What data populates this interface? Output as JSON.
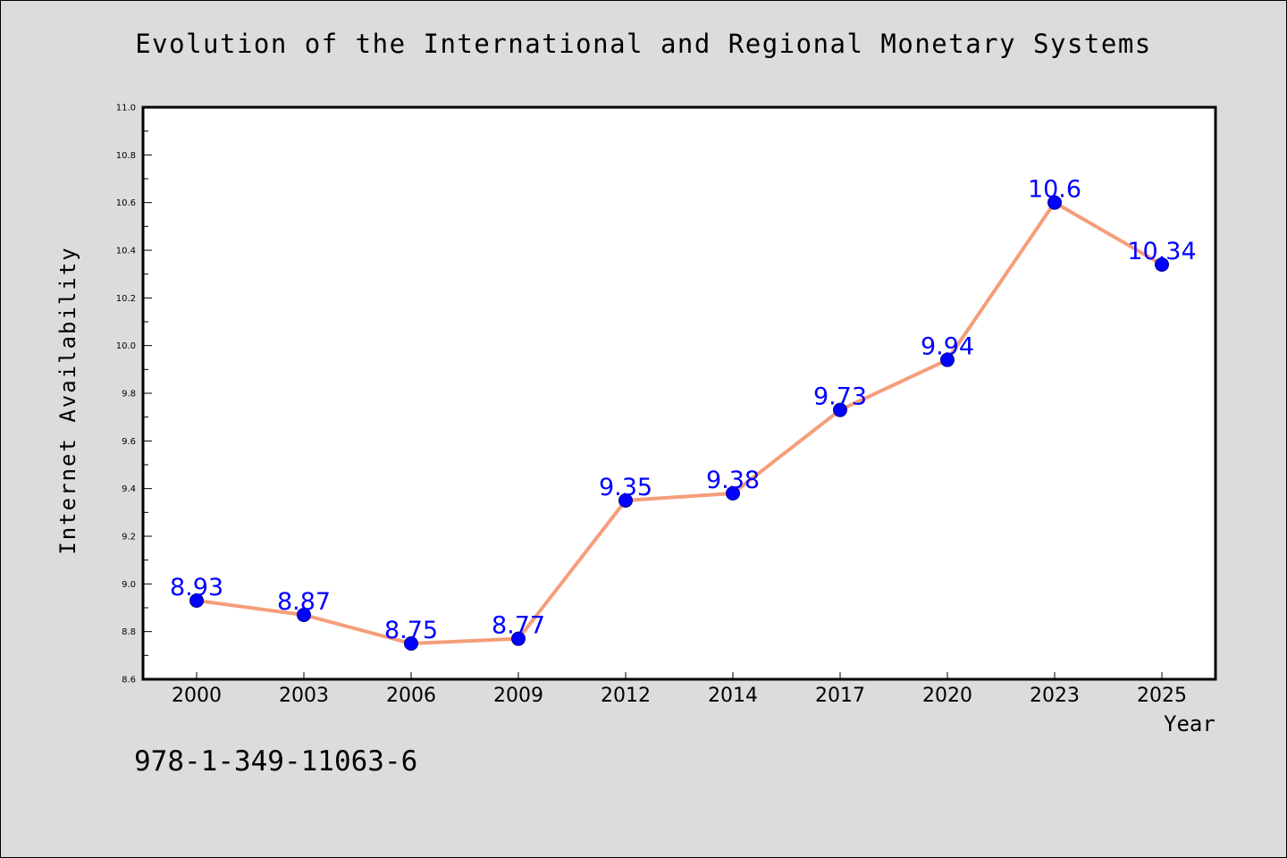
{
  "chart_data": {
    "type": "line",
    "title": "Evolution of the International and Regional Monetary Systems",
    "xlabel": "Year",
    "ylabel": "Internet Availability",
    "categories": [
      "2000",
      "2003",
      "2006",
      "2009",
      "2012",
      "2014",
      "2017",
      "2020",
      "2023",
      "2025"
    ],
    "series": [
      {
        "values": [
          8.93,
          8.87,
          8.75,
          8.77,
          9.35,
          9.38,
          9.73,
          9.94,
          10.6,
          10.34
        ],
        "labels": [
          "8.93",
          "8.87",
          "8.75",
          "8.77",
          "9.35",
          "9.38",
          "9.73",
          "9.94",
          "10.6",
          "10.34"
        ]
      }
    ],
    "ylim": [
      8.6,
      11.0
    ],
    "yticks": [
      "8.6",
      "8.8",
      "9.0",
      "9.2",
      "9.4",
      "9.6",
      "9.8",
      "10.0",
      "10.2",
      "10.4",
      "10.6",
      "10.8",
      "11.0"
    ],
    "grid": false,
    "legend": "none",
    "line_color": "#f59e7a",
    "marker_color": "#0000ff",
    "label_color": "#0000ff",
    "plot_background": "#ffffff",
    "page_background": "#dcdcdc"
  },
  "footnote": "978-1-349-11063-6"
}
